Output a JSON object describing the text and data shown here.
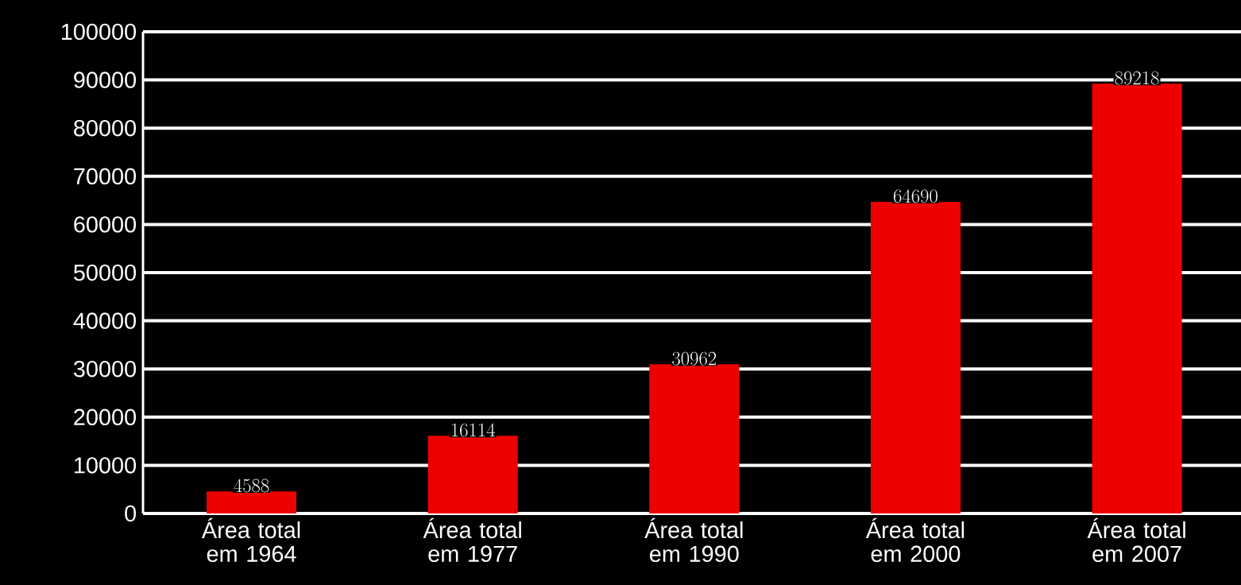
{
  "chart_data": {
    "type": "bar",
    "categories": [
      "Área total em 1964",
      "Área total em 1977",
      "Área total em 1990",
      "Área total em 2000",
      "Área total em 2007"
    ],
    "values": [
      4588,
      16114,
      30962,
      64690,
      89218
    ],
    "color": "#ee0000",
    "ylim": [
      0,
      100000
    ],
    "yticks": [
      0,
      10000,
      20000,
      30000,
      40000,
      50000,
      60000,
      70000,
      80000,
      90000,
      100000
    ],
    "grid": "y",
    "data_labels": true
  }
}
